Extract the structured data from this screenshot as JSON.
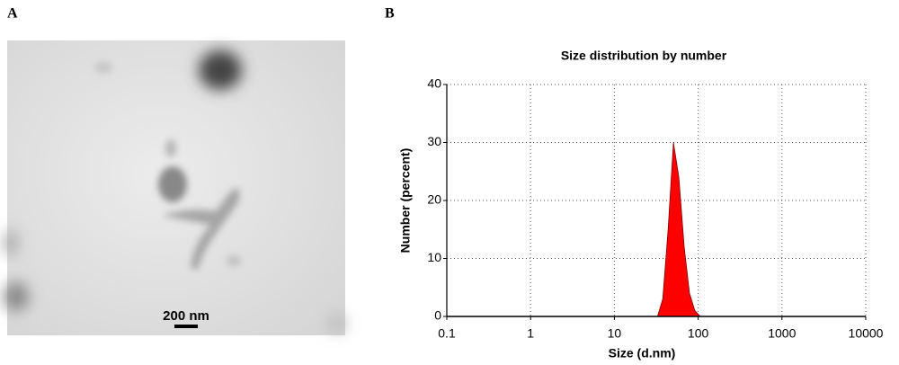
{
  "panel_a_label": "A",
  "panel_b_label": "B",
  "scale_bar_label": "200 nm",
  "chart_data": {
    "type": "area",
    "title": "Size distribution by number",
    "x_label": "Size (d.nm)",
    "y_label": "Number (percent)",
    "x": [
      32.7,
      37.8,
      43.8,
      50.7,
      58.8,
      68.1,
      78.8,
      91.3,
      106
    ],
    "values": [
      0,
      3,
      15,
      30,
      24,
      12,
      4,
      1,
      0
    ],
    "color": "#ff0000",
    "log_x": true,
    "grid": true,
    "xlim": [
      0.1,
      10000
    ],
    "ylim": [
      0,
      40
    ],
    "xticks": [
      0.1,
      1,
      10,
      100,
      1000,
      10000
    ],
    "yticks": [
      0,
      10,
      20,
      30,
      40
    ]
  }
}
